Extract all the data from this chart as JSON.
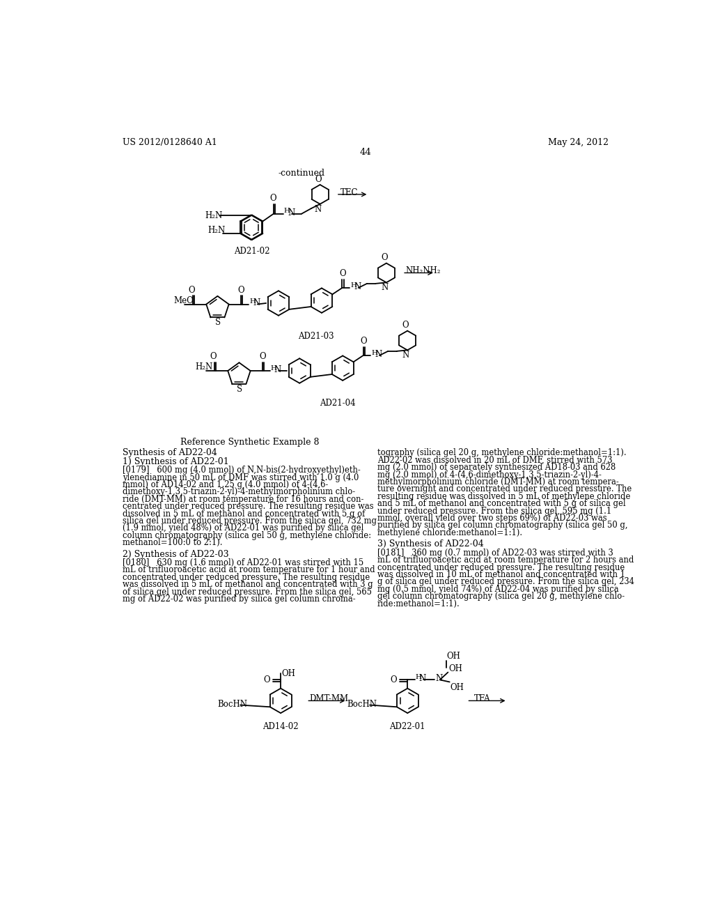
{
  "page_header_left": "US 2012/0128640 A1",
  "page_header_right": "May 24, 2012",
  "page_number": "44",
  "background_color": "#ffffff",
  "continued_label": "-continued",
  "ref_example": "Reference Synthetic Example 8",
  "synthesis_title": "Synthesis of AD22-04",
  "synth1_title": "1) Synthesis of AD22-01",
  "synth1_para_lines": [
    "[0179]   600 mg (4.0 mmol) of N,N-bis(2-hydroxyethyl)eth-",
    "ylenediamine in 50 mL of DMF was stirred with 1.0 g (4.0",
    "mmol) of AD14-02 and 1.25 g (4.0 mmol) of 4-(4,6-",
    "dimethoxy-1,3,5-triazin-2-yl)-4-methylmorpholinium chlo-",
    "ride (DMT-MM) at room temperature for 16 hours and con-",
    "centrated under reduced pressure. The resulting residue was",
    "dissolved in 5 mL of methanol and concentrated with 5 g of",
    "silica gel under reduced pressure. From the silica gel, 732 mg",
    "(1.9 mmol, yield 48%) of AD22-01 was purified by silica gel",
    "column chromatography (silica gel 50 g, methylene chloride:",
    "methanol=100:0 to 2:1)."
  ],
  "synth2_title": "2) Synthesis of AD22-03",
  "synth2_para_lines": [
    "[0180]   630 mg (1.6 mmol) of AD22-01 was stirred with 15",
    "mL of trifluoroacetic acid at room temperature for 1 hour and",
    "concentrated under reduced pressure. The resulting residue",
    "was dissolved in 5 mL of methanol and concentrated with 3 g",
    "of silica gel under reduced pressure. From the silica gel, 565",
    "mg of AD22-02 was purified by silica gel column chroma-"
  ],
  "synth3_right_lines": [
    "tography (silica gel 20 g, methylene chloride:methanol=1:1).",
    "AD22-02 was dissolved in 20 mL of DMF, stirred with 573",
    "mg (2.0 mmol) of separately synthesized AD18-03 and 628",
    "mg (2.0 mmol) of 4-(4,6-dimethoxy-1,3,5-triazin-2-yl)-4-",
    "methylmorpholinium chloride (DMT-MM) at room tempera-",
    "ture overnight and concentrated under reduced pressure. The",
    "resulting residue was dissolved in 5 mL of methylene chloride",
    "and 5 mL of methanol and concentrated with 5 g of silica gel",
    "under reduced pressure. From the silica gel, 595 mg (1.1",
    "mmol, overall yield over two steps 69%) of AD22-03 was",
    "purified by silica gel column chromatography (silica gel 50 g,",
    "methylene chloride:methanol=1:1)."
  ],
  "synth4_title": "3) Synthesis of AD22-04",
  "synth4_para_lines": [
    "[0181]   360 mg (0.7 mmol) of AD22-03 was stirred with 3",
    "mL of trifluoroacetic acid at room temperature for 2 hours and",
    "concentrated under reduced pressure. The resulting residue",
    "was dissolved in 10 mL of methanol and concentrated with 1",
    "g of silica gel under reduced pressure. From the silica gel, 234",
    "mg (0.5 mmol, yield 74%) of AD22-04 was purified by silica",
    "gel column chromatography (silica gel 20 g, methylene chlo-",
    "ride:methanol=1:1)."
  ]
}
